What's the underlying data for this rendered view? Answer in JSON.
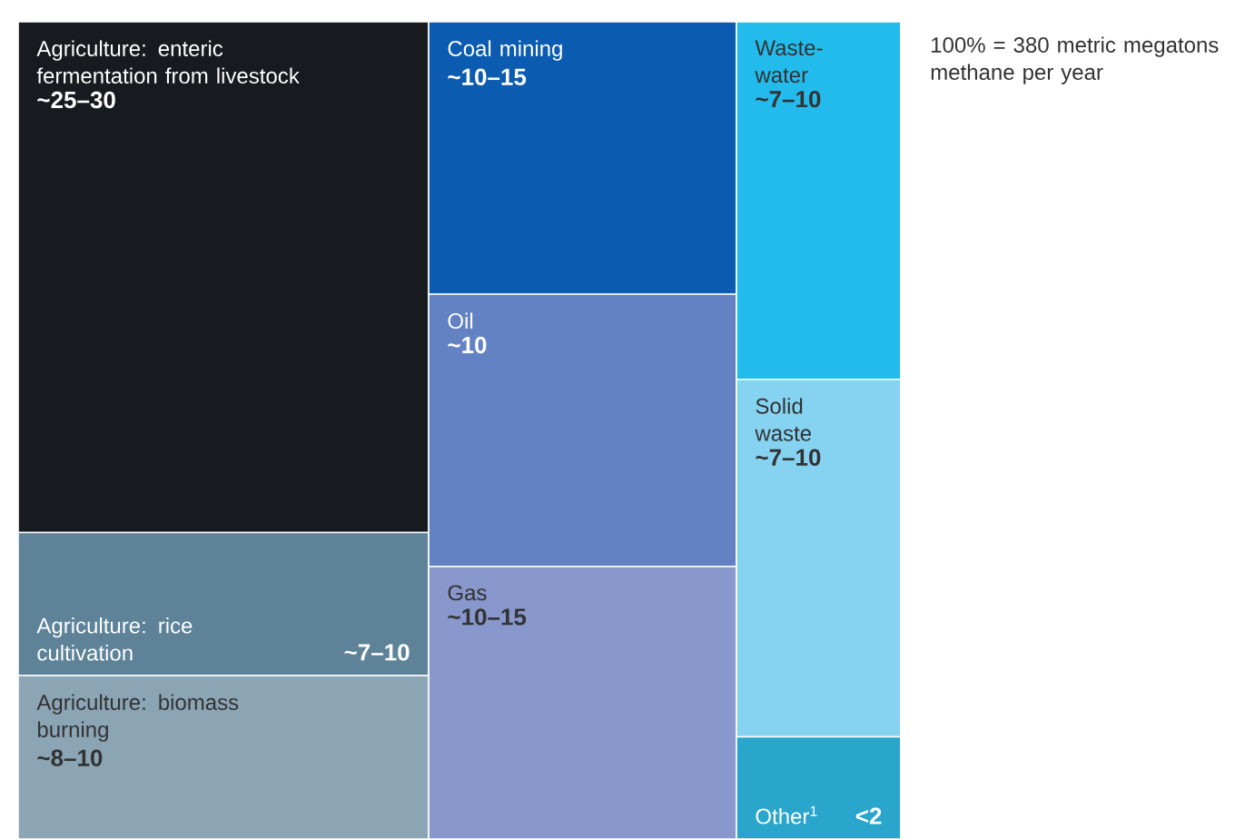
{
  "chart_data": {
    "type": "other",
    "categories": [
      "Agriculture: enteric fermentation from livestock",
      "Agriculture: rice cultivation",
      "Agriculture: biomass burning",
      "Coal mining",
      "Oil",
      "Gas",
      "Waste-water",
      "Solid waste",
      "Other$^{1}$"
    ],
    "values": [
      25,
      7,
      8,
      10,
      10,
      10,
      7,
      7,
      2
    ],
    "value_labels": [
      "~25–30",
      "~7–10",
      "~8–10",
      "~10–15",
      "~10",
      "~10–15",
      "~7–10",
      "~7–10",
      "<2"
    ],
    "colors": [
      "#171b20",
      "#5e8399",
      "#8ba5b5",
      "#0b5bb0",
      "#6282c4",
      "#8898cc",
      "#22bbec",
      "#86d3f1",
      "#2aa6cc"
    ],
    "annotations": [
      "100% = 380 metric megatons methane per year"
    ]
  }
}
